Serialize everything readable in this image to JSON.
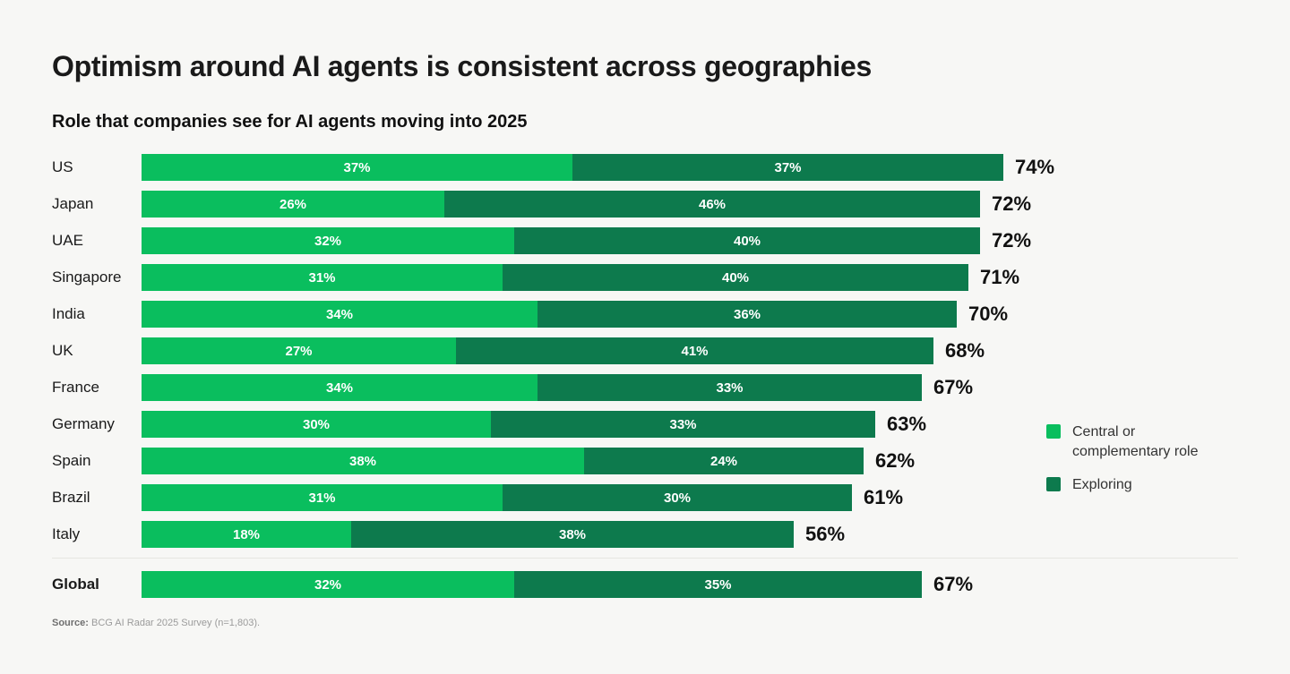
{
  "chart_data": {
    "type": "bar",
    "orientation": "horizontal",
    "stacked": true,
    "title": "Optimism around AI agents is consistent across geographies",
    "subtitle": "Role that companies see for AI agents moving into 2025",
    "categories": [
      "US",
      "Japan",
      "UAE",
      "Singapore",
      "India",
      "UK",
      "France",
      "Germany",
      "Spain",
      "Brazil",
      "Italy",
      "Global"
    ],
    "series": [
      {
        "name": "Central or complementary role",
        "values": [
          37,
          26,
          32,
          31,
          34,
          27,
          34,
          30,
          38,
          31,
          18,
          32
        ]
      },
      {
        "name": "Exploring",
        "values": [
          37,
          46,
          40,
          40,
          36,
          41,
          33,
          33,
          24,
          30,
          38,
          35
        ]
      }
    ],
    "totals": [
      74,
      72,
      72,
      71,
      70,
      68,
      67,
      63,
      62,
      61,
      56,
      67
    ],
    "value_suffix": "%",
    "divider_before_category": "Global",
    "emphasized_category": "Global",
    "xlim": [
      0,
      100
    ],
    "grid": false,
    "legend_position": "right"
  },
  "legend": {
    "items": [
      {
        "label": "Central or complementary role",
        "color": "#0abe5e"
      },
      {
        "label": "Exploring",
        "color": "#0d7a4d"
      }
    ]
  },
  "source": {
    "prefix": "Source:",
    "text": " BCG AI Radar 2025 Survey (n=1,803)."
  },
  "colors": {
    "central": "#0abe5e",
    "exploring": "#0d7a4d",
    "background": "#f7f7f5",
    "bar_value_text": "#ffffff",
    "total_text": "#111111"
  }
}
